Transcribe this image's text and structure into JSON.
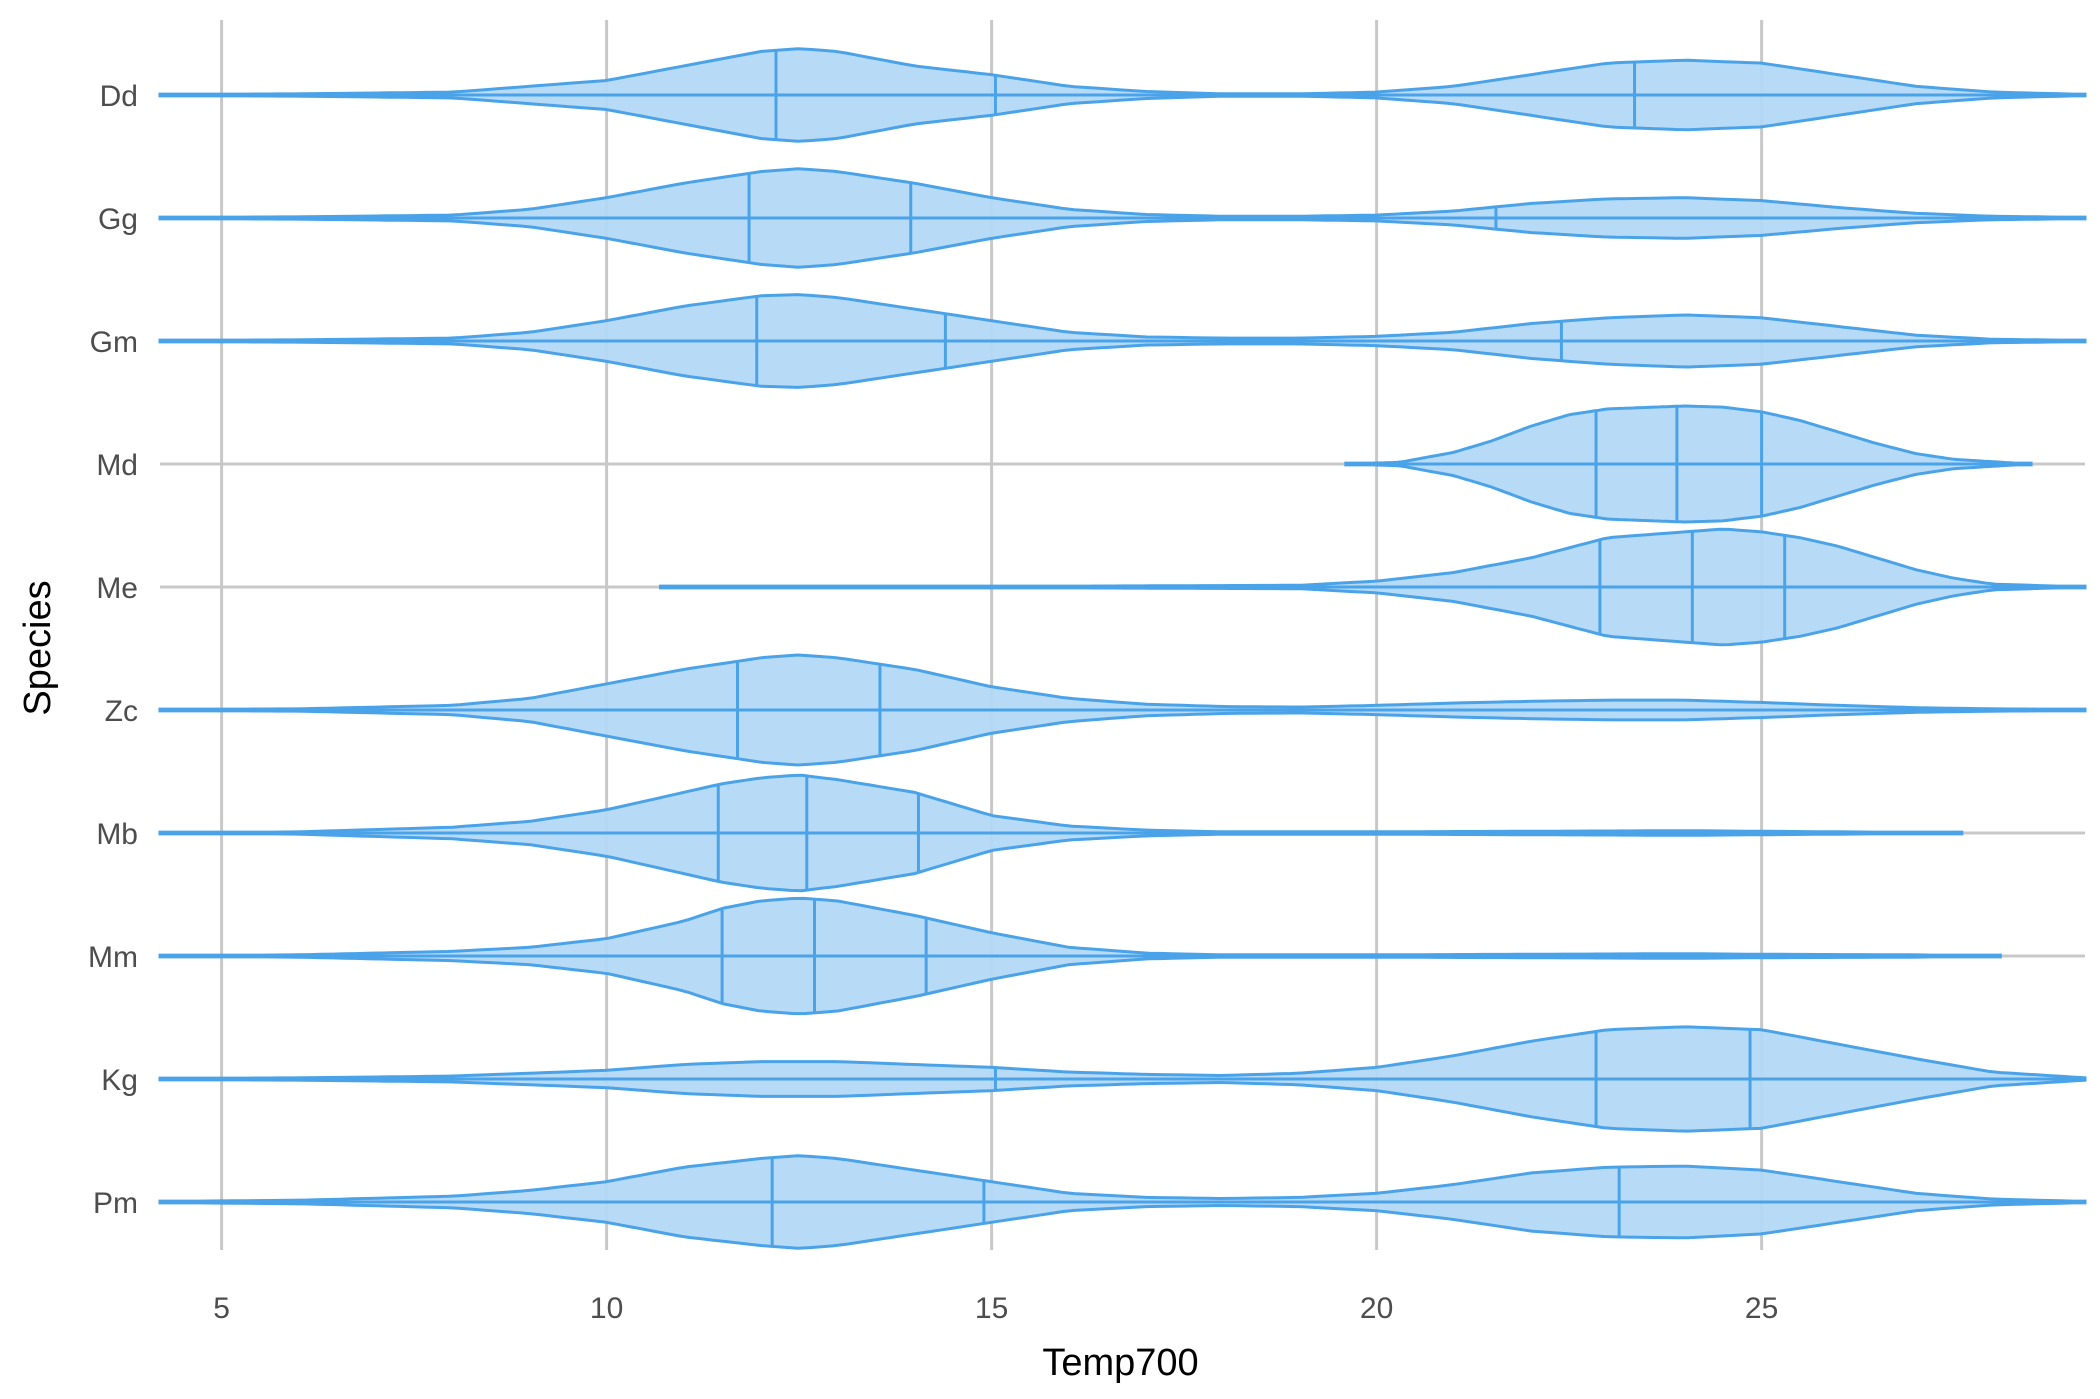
{
  "chart_data": {
    "type": "violin",
    "orientation": "horizontal",
    "xlabel": "Temp700",
    "ylabel": "Species",
    "xlim": [
      4.2,
      29.2
    ],
    "x_ticks": [
      5,
      10,
      15,
      20,
      25
    ],
    "grid": true,
    "colors": {
      "fill": "#b3d9f7",
      "line": "#4aa3e8",
      "grid": "#c8c8c8"
    },
    "categories": [
      "Dd",
      "Gg",
      "Gm",
      "Md",
      "Me",
      "Zc",
      "Mb",
      "Mm",
      "Kg",
      "Pm"
    ],
    "series": [
      {
        "category": "Dd",
        "range": [
          4.2,
          29.2
        ],
        "quantiles": [
          12.2,
          15.05,
          23.35
        ],
        "density": [
          [
            4.2,
            0.01
          ],
          [
            6,
            0.02
          ],
          [
            8,
            0.05
          ],
          [
            10,
            0.25
          ],
          [
            11,
            0.5
          ],
          [
            12,
            0.75
          ],
          [
            12.5,
            0.8
          ],
          [
            13,
            0.75
          ],
          [
            14,
            0.5
          ],
          [
            15,
            0.35
          ],
          [
            16,
            0.15
          ],
          [
            17,
            0.06
          ],
          [
            18,
            0.02
          ],
          [
            19,
            0.02
          ],
          [
            20,
            0.05
          ],
          [
            21,
            0.15
          ],
          [
            22,
            0.35
          ],
          [
            23,
            0.55
          ],
          [
            24,
            0.6
          ],
          [
            25,
            0.55
          ],
          [
            26,
            0.35
          ],
          [
            27,
            0.15
          ],
          [
            28,
            0.05
          ],
          [
            29.2,
            0.01
          ]
        ]
      },
      {
        "category": "Gg",
        "range": [
          4.2,
          29.2
        ],
        "quantiles": [
          11.85,
          13.95,
          21.55
        ],
        "density": [
          [
            4.2,
            0.01
          ],
          [
            6,
            0.02
          ],
          [
            8,
            0.05
          ],
          [
            9,
            0.15
          ],
          [
            10,
            0.35
          ],
          [
            11,
            0.6
          ],
          [
            12,
            0.8
          ],
          [
            12.5,
            0.85
          ],
          [
            13,
            0.8
          ],
          [
            14,
            0.6
          ],
          [
            15,
            0.35
          ],
          [
            16,
            0.15
          ],
          [
            17,
            0.06
          ],
          [
            18,
            0.03
          ],
          [
            19,
            0.03
          ],
          [
            20,
            0.05
          ],
          [
            21,
            0.12
          ],
          [
            22,
            0.25
          ],
          [
            23,
            0.33
          ],
          [
            24,
            0.35
          ],
          [
            25,
            0.3
          ],
          [
            26,
            0.18
          ],
          [
            27,
            0.08
          ],
          [
            28,
            0.03
          ],
          [
            29.2,
            0.01
          ]
        ]
      },
      {
        "category": "Gm",
        "range": [
          4.2,
          29.2
        ],
        "quantiles": [
          11.95,
          14.4,
          22.4
        ],
        "density": [
          [
            4.2,
            0.01
          ],
          [
            6,
            0.02
          ],
          [
            8,
            0.05
          ],
          [
            9,
            0.15
          ],
          [
            10,
            0.35
          ],
          [
            11,
            0.6
          ],
          [
            12,
            0.78
          ],
          [
            12.5,
            0.8
          ],
          [
            13,
            0.75
          ],
          [
            14,
            0.55
          ],
          [
            15,
            0.35
          ],
          [
            16,
            0.15
          ],
          [
            17,
            0.07
          ],
          [
            18,
            0.05
          ],
          [
            19,
            0.05
          ],
          [
            20,
            0.08
          ],
          [
            21,
            0.15
          ],
          [
            22,
            0.3
          ],
          [
            23,
            0.4
          ],
          [
            24,
            0.45
          ],
          [
            25,
            0.4
          ],
          [
            26,
            0.25
          ],
          [
            27,
            0.1
          ],
          [
            28,
            0.03
          ],
          [
            29.2,
            0.01
          ]
        ]
      },
      {
        "category": "Md",
        "range": [
          19.6,
          28.5
        ],
        "quantiles": [
          22.85,
          23.9,
          25.0
        ],
        "density": [
          [
            19.6,
            0.0
          ],
          [
            20.3,
            0.03
          ],
          [
            21,
            0.2
          ],
          [
            21.5,
            0.4
          ],
          [
            22,
            0.65
          ],
          [
            22.5,
            0.85
          ],
          [
            23,
            0.95
          ],
          [
            24,
            1.0
          ],
          [
            24.5,
            0.98
          ],
          [
            25,
            0.9
          ],
          [
            25.5,
            0.75
          ],
          [
            26,
            0.55
          ],
          [
            26.5,
            0.35
          ],
          [
            27,
            0.18
          ],
          [
            27.5,
            0.08
          ],
          [
            28.5,
            0.0
          ]
        ]
      },
      {
        "category": "Me",
        "range": [
          10.7,
          29.2
        ],
        "quantiles": [
          22.9,
          24.1,
          25.3
        ],
        "density": [
          [
            10.7,
            0.0
          ],
          [
            15,
            0.01
          ],
          [
            17,
            0.02
          ],
          [
            19,
            0.03
          ],
          [
            20,
            0.1
          ],
          [
            21,
            0.25
          ],
          [
            22,
            0.5
          ],
          [
            23,
            0.85
          ],
          [
            23.5,
            0.9
          ],
          [
            24,
            0.95
          ],
          [
            24.5,
            1.0
          ],
          [
            25,
            0.95
          ],
          [
            25.5,
            0.85
          ],
          [
            26,
            0.7
          ],
          [
            27,
            0.3
          ],
          [
            27.5,
            0.15
          ],
          [
            28,
            0.05
          ],
          [
            29.2,
            0.0
          ]
        ]
      },
      {
        "category": "Zc",
        "range": [
          4.2,
          29.2
        ],
        "quantiles": [
          11.7,
          13.55
        ],
        "density": [
          [
            4.2,
            0.01
          ],
          [
            6,
            0.02
          ],
          [
            8,
            0.08
          ],
          [
            9,
            0.2
          ],
          [
            10,
            0.45
          ],
          [
            11,
            0.7
          ],
          [
            12,
            0.9
          ],
          [
            12.5,
            0.95
          ],
          [
            13,
            0.9
          ],
          [
            14,
            0.7
          ],
          [
            15,
            0.4
          ],
          [
            16,
            0.2
          ],
          [
            17,
            0.1
          ],
          [
            18,
            0.06
          ],
          [
            19,
            0.05
          ],
          [
            20,
            0.08
          ],
          [
            21,
            0.12
          ],
          [
            22,
            0.15
          ],
          [
            23,
            0.17
          ],
          [
            24,
            0.17
          ],
          [
            25,
            0.13
          ],
          [
            26,
            0.08
          ],
          [
            27,
            0.04
          ],
          [
            28,
            0.02
          ],
          [
            29.2,
            0.01
          ]
        ]
      },
      {
        "category": "Mb",
        "range": [
          4.2,
          27.6
        ],
        "quantiles": [
          11.45,
          12.6,
          14.05
        ],
        "density": [
          [
            4.2,
            0.0
          ],
          [
            6,
            0.02
          ],
          [
            8,
            0.1
          ],
          [
            9,
            0.2
          ],
          [
            10,
            0.4
          ],
          [
            11,
            0.7
          ],
          [
            11.5,
            0.85
          ],
          [
            12,
            0.95
          ],
          [
            12.5,
            1.0
          ],
          [
            13,
            0.92
          ],
          [
            14,
            0.7
          ],
          [
            15,
            0.3
          ],
          [
            16,
            0.12
          ],
          [
            17,
            0.05
          ],
          [
            18,
            0.02
          ],
          [
            20,
            0.02
          ],
          [
            22,
            0.03
          ],
          [
            24,
            0.04
          ],
          [
            25,
            0.03
          ],
          [
            27,
            0.01
          ],
          [
            27.6,
            0.0
          ]
        ]
      },
      {
        "category": "Mm",
        "range": [
          4.2,
          28.1
        ],
        "quantiles": [
          11.5,
          12.7,
          14.15
        ],
        "density": [
          [
            4.2,
            0.0
          ],
          [
            6,
            0.02
          ],
          [
            8,
            0.08
          ],
          [
            9,
            0.15
          ],
          [
            10,
            0.3
          ],
          [
            11,
            0.6
          ],
          [
            11.5,
            0.82
          ],
          [
            12,
            0.95
          ],
          [
            12.5,
            1.0
          ],
          [
            13,
            0.95
          ],
          [
            14,
            0.7
          ],
          [
            15,
            0.4
          ],
          [
            16,
            0.15
          ],
          [
            17,
            0.05
          ],
          [
            18,
            0.02
          ],
          [
            20,
            0.02
          ],
          [
            22,
            0.03
          ],
          [
            24,
            0.04
          ],
          [
            25,
            0.03
          ],
          [
            27,
            0.02
          ],
          [
            28.1,
            0.0
          ]
        ]
      },
      {
        "category": "Kg",
        "range": [
          4.2,
          29.2
        ],
        "quantiles": [
          15.05,
          22.85,
          24.85
        ],
        "density": [
          [
            4.2,
            0.01
          ],
          [
            6,
            0.02
          ],
          [
            8,
            0.05
          ],
          [
            10,
            0.15
          ],
          [
            11,
            0.25
          ],
          [
            12,
            0.3
          ],
          [
            13,
            0.3
          ],
          [
            14,
            0.25
          ],
          [
            15,
            0.2
          ],
          [
            16,
            0.12
          ],
          [
            17,
            0.08
          ],
          [
            18,
            0.06
          ],
          [
            19,
            0.1
          ],
          [
            20,
            0.2
          ],
          [
            21,
            0.4
          ],
          [
            22,
            0.65
          ],
          [
            23,
            0.85
          ],
          [
            24,
            0.9
          ],
          [
            25,
            0.85
          ],
          [
            26,
            0.6
          ],
          [
            27,
            0.35
          ],
          [
            28,
            0.12
          ],
          [
            29.2,
            0.02
          ]
        ]
      },
      {
        "category": "Pm",
        "range": [
          4.2,
          29.2
        ],
        "quantiles": [
          12.15,
          14.9,
          23.15
        ],
        "density": [
          [
            4.2,
            0.01
          ],
          [
            6,
            0.03
          ],
          [
            8,
            0.1
          ],
          [
            9,
            0.2
          ],
          [
            10,
            0.35
          ],
          [
            11,
            0.6
          ],
          [
            12,
            0.75
          ],
          [
            12.5,
            0.8
          ],
          [
            13,
            0.75
          ],
          [
            14,
            0.55
          ],
          [
            15,
            0.35
          ],
          [
            16,
            0.15
          ],
          [
            17,
            0.08
          ],
          [
            18,
            0.06
          ],
          [
            19,
            0.08
          ],
          [
            20,
            0.15
          ],
          [
            21,
            0.3
          ],
          [
            22,
            0.5
          ],
          [
            23,
            0.6
          ],
          [
            24,
            0.62
          ],
          [
            25,
            0.55
          ],
          [
            26,
            0.35
          ],
          [
            27,
            0.15
          ],
          [
            28,
            0.05
          ],
          [
            29.2,
            0.01
          ]
        ]
      }
    ]
  }
}
